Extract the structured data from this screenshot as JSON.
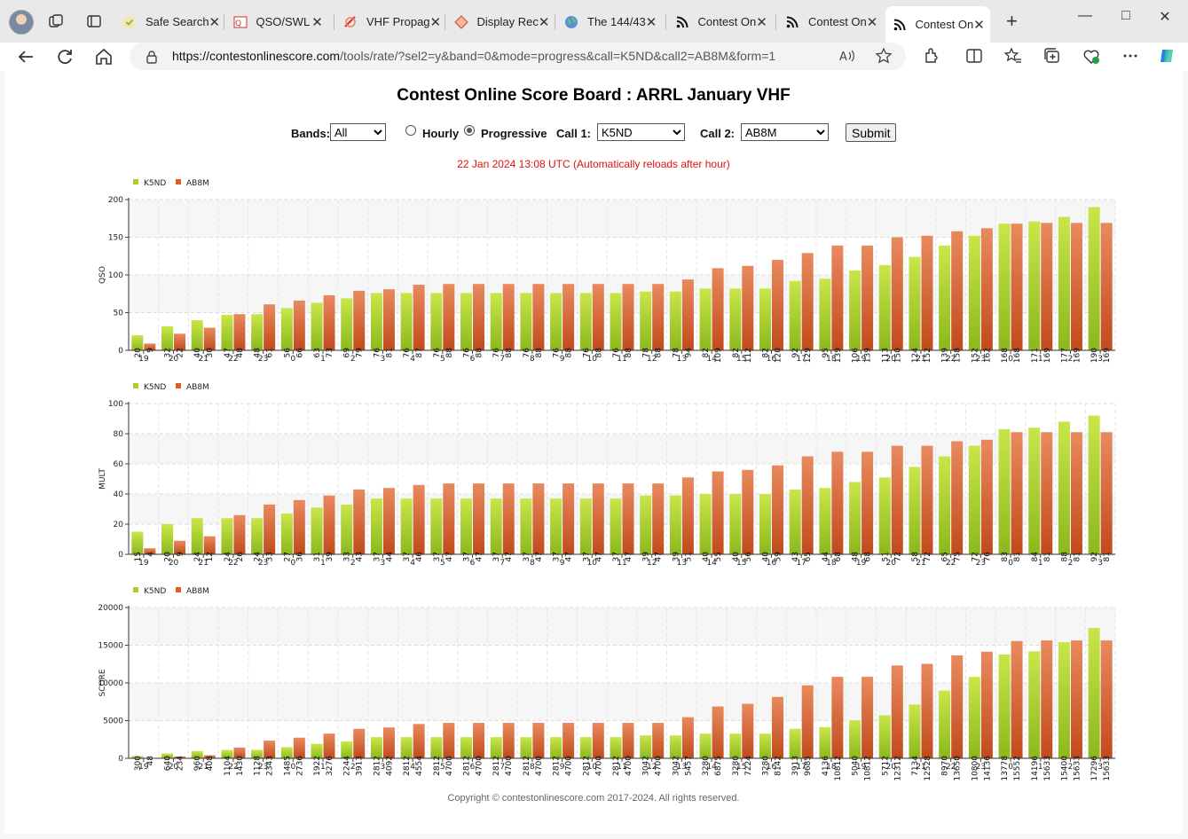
{
  "browser": {
    "tabs": [
      {
        "title": "Safe Search",
        "favicon": "check-shield-icon"
      },
      {
        "title": "QSO/SWL",
        "favicon": "qso-icon"
      },
      {
        "title": "VHF Propag",
        "favicon": "propagation-icon"
      },
      {
        "title": "Display Rec",
        "favicon": "diamond-icon"
      },
      {
        "title": "The 144/43",
        "favicon": "globe-icon"
      },
      {
        "title": "Contest On",
        "favicon": "rss-icon"
      },
      {
        "title": "Contest On",
        "favicon": "rss-icon"
      },
      {
        "title": "Contest On",
        "favicon": "rss-icon",
        "active": true
      }
    ],
    "url_host": "https://contestonlinescore.com",
    "url_path": "/tools/rate/?sel2=y&band=0&mode=progress&call=K5ND&call2=AB8M&form=1"
  },
  "page": {
    "title": "Contest Online Score Board : ARRL January VHF",
    "controls": {
      "bands_label": "Bands:",
      "bands_value": "All",
      "hourly_label": "Hourly",
      "progressive_label": "Progressive",
      "call1_label": "Call 1:",
      "call1_value": "K5ND",
      "call2_label": "Call 2:",
      "call2_value": "AB8M",
      "submit_label": "Submit"
    },
    "status": "22 Jan 2024 13:08 UTC   (Automatically reloads after hour)",
    "copyright": "Copyright © contestonlinescore.com 2017-2024. All rights reserved."
  },
  "colors": {
    "k5nd": "#a8d028",
    "ab8m": "#d8602c"
  },
  "chart_data": [
    {
      "type": "bar",
      "ylabel": "QSO",
      "ylim": [
        0,
        200
      ],
      "yticks": [
        0,
        50,
        100,
        150,
        200
      ],
      "categories": [
        "19",
        "20",
        "21",
        "22",
        "23",
        "0",
        "1",
        "2",
        "3",
        "4",
        "5",
        "6",
        "7",
        "8",
        "9",
        "10",
        "11",
        "12",
        "13",
        "14",
        "15",
        "16",
        "17",
        "18",
        "19",
        "20",
        "21",
        "22",
        "23",
        "0",
        "1",
        "2",
        "3"
      ],
      "series": [
        {
          "name": "K5ND",
          "values": [
            20,
            32,
            40,
            47,
            48,
            56,
            63,
            69,
            76,
            76,
            76,
            76,
            76,
            76,
            76,
            76,
            76,
            78,
            78,
            82,
            82,
            82,
            92,
            95,
            106,
            113,
            124,
            139,
            152,
            168,
            171,
            177,
            190
          ]
        },
        {
          "name": "AB8M",
          "values": [
            9,
            22,
            30,
            48,
            61,
            66,
            73,
            79,
            81,
            87,
            88,
            88,
            88,
            88,
            88,
            88,
            88,
            88,
            94,
            109,
            112,
            120,
            129,
            139,
            139,
            150,
            152,
            158,
            162,
            168,
            169,
            169,
            169
          ]
        }
      ],
      "legend": "top-left",
      "grid": true
    },
    {
      "type": "bar",
      "ylabel": "MULT",
      "ylim": [
        0,
        100
      ],
      "yticks": [
        0,
        20,
        40,
        60,
        80,
        100
      ],
      "categories": [
        "19",
        "20",
        "21",
        "22",
        "23",
        "0",
        "1",
        "2",
        "3",
        "4",
        "5",
        "6",
        "7",
        "8",
        "9",
        "10",
        "11",
        "12",
        "13",
        "14",
        "15",
        "16",
        "17",
        "18",
        "19",
        "20",
        "21",
        "22",
        "23",
        "0",
        "1",
        "2",
        "3"
      ],
      "series": [
        {
          "name": "K5ND",
          "values": [
            15,
            20,
            24,
            24,
            24,
            27,
            31,
            33,
            37,
            37,
            37,
            37,
            37,
            37,
            37,
            37,
            37,
            39,
            39,
            40,
            40,
            40,
            43,
            44,
            48,
            51,
            58,
            65,
            72,
            83,
            84,
            88,
            92
          ]
        },
        {
          "name": "AB8M",
          "values": [
            4,
            9,
            12,
            26,
            33,
            36,
            39,
            43,
            44,
            46,
            47,
            47,
            47,
            47,
            47,
            47,
            47,
            47,
            51,
            55,
            56,
            59,
            65,
            68,
            68,
            72,
            72,
            75,
            76,
            81,
            81,
            81,
            81
          ]
        }
      ],
      "legend": "top-left",
      "grid": true
    },
    {
      "type": "bar",
      "ylabel": "SCORE",
      "ylim": [
        0,
        20000
      ],
      "yticks": [
        0,
        5000,
        10000,
        15000,
        20000
      ],
      "categories": [
        "19",
        "20",
        "21",
        "22",
        "23",
        "0",
        "1",
        "2",
        "3",
        "4",
        "5",
        "6",
        "7",
        "8",
        "9",
        "10",
        "11",
        "12",
        "13",
        "14",
        "15",
        "16",
        "17",
        "18",
        "19",
        "20",
        "21",
        "22",
        "23",
        "0",
        "1",
        "2",
        "3"
      ],
      "series": [
        {
          "name": "K5ND",
          "values": [
            300,
            640,
            960,
            1104,
            1128,
            1485,
            1922,
            2244,
            2812,
            2812,
            2812,
            2812,
            2812,
            2812,
            2812,
            2812,
            2812,
            3042,
            3042,
            3280,
            3280,
            3280,
            3913,
            4136,
            5040,
            5712,
            7134,
            8970,
            10800,
            13778,
            14196,
            15400,
            17296
          ]
        },
        {
          "name": "AB8M",
          "values": [
            48,
            234,
            408,
            1430,
            2343,
            2736,
            3276,
            3913,
            4092,
            4554,
            4700,
            4700,
            4700,
            4700,
            4700,
            4700,
            4700,
            4700,
            5457,
            6875,
            7224,
            8142,
            9685,
            10812,
            10812,
            12312,
            12528,
            13650,
            14136,
            15552,
            15633,
            15633,
            15633
          ]
        }
      ],
      "legend": "top-left",
      "grid": true
    }
  ]
}
